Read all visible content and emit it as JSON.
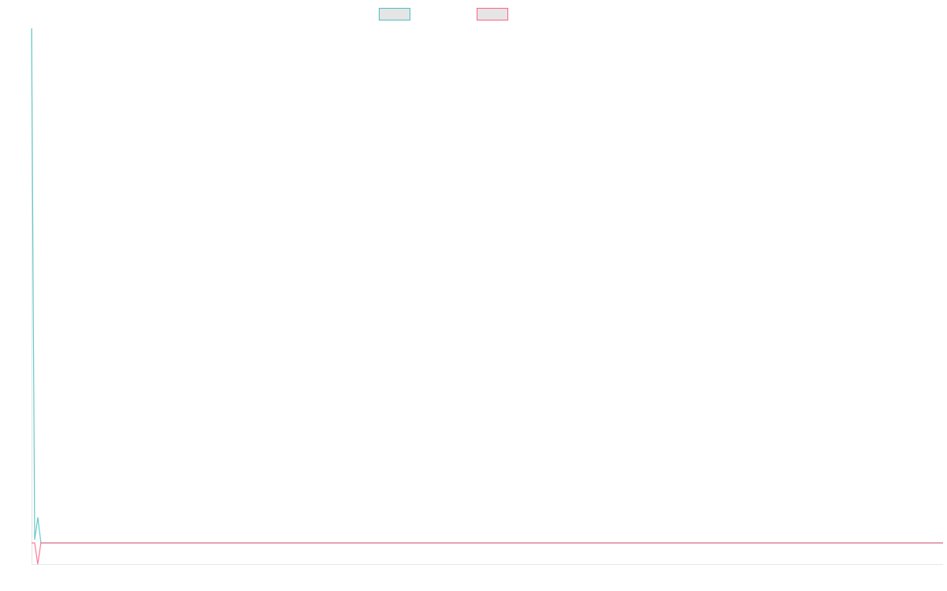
{
  "chart_data": {
    "type": "line",
    "title": "",
    "xlabel": "",
    "ylabel": "",
    "ylim": [
      -1,
      24.2
    ],
    "grid": false,
    "legend_placement": "top",
    "series": [
      {
        "color": "#4bc0c0",
        "values": [
          24.2,
          0.15,
          1.2,
          0,
          0,
          0,
          0,
          0,
          0,
          0,
          0,
          0,
          0,
          0,
          0,
          0,
          0,
          0,
          0,
          0,
          0,
          0,
          0,
          0,
          0,
          0,
          0,
          0,
          0,
          0,
          0,
          0,
          0,
          0,
          0,
          0,
          0,
          0,
          0,
          0,
          0,
          0,
          0,
          0,
          0,
          0,
          0,
          0,
          0,
          0,
          0,
          0,
          0,
          0,
          0,
          0,
          0,
          0,
          0,
          0,
          0,
          0,
          0,
          0,
          0,
          0,
          0,
          0,
          0,
          0,
          0,
          0,
          0,
          0,
          0,
          0,
          0,
          0,
          0,
          0,
          0,
          0,
          0,
          0,
          0,
          0,
          0,
          0,
          0,
          0,
          0,
          0,
          0,
          0,
          0,
          0,
          0,
          0,
          0,
          0,
          0,
          0,
          0,
          0,
          0,
          0,
          0,
          0,
          0,
          0,
          0,
          0,
          0,
          0,
          0,
          0,
          0,
          0,
          0,
          0,
          0,
          0,
          0,
          0,
          0,
          0,
          0,
          0,
          0,
          0,
          0,
          0,
          0,
          0,
          0,
          0,
          0,
          0,
          0,
          0,
          0,
          0,
          0,
          0,
          0,
          0,
          0,
          0,
          0,
          0,
          0,
          0,
          0,
          0,
          0,
          0,
          0,
          0,
          0,
          0,
          0,
          0,
          0,
          0,
          0,
          0,
          0,
          0,
          0,
          0,
          0,
          0,
          0,
          0,
          0,
          0,
          0,
          0,
          0,
          0,
          0,
          0,
          0,
          0,
          0,
          0,
          0,
          0,
          0,
          0,
          0,
          0,
          0,
          0,
          0,
          0,
          0,
          0,
          0,
          0,
          0,
          0,
          0,
          0,
          0,
          0,
          0,
          0,
          0,
          0,
          0,
          0,
          0,
          0,
          0,
          0,
          0,
          0,
          0,
          0,
          0,
          0,
          0,
          0,
          0,
          0,
          0,
          0,
          0,
          0,
          0,
          0,
          0,
          0,
          0,
          0,
          0,
          0,
          0,
          0,
          0,
          0,
          0,
          0,
          0,
          0,
          0,
          0,
          0,
          0,
          0,
          0,
          0,
          0,
          0,
          0,
          0,
          0,
          0,
          0,
          0,
          0,
          0,
          0,
          0,
          0,
          0,
          0,
          0,
          0,
          0,
          0,
          0,
          0,
          0,
          0,
          0,
          0,
          0,
          0,
          0,
          0,
          0,
          0,
          0,
          0,
          0,
          0,
          0,
          0,
          0,
          0,
          0
        ]
      },
      {
        "color": "#ff6384",
        "values": [
          0,
          0,
          -1,
          0,
          0,
          0,
          0,
          0,
          0,
          0,
          0,
          0,
          0,
          0,
          0,
          0,
          0,
          0,
          0,
          0,
          0,
          0,
          0,
          0,
          0,
          0,
          0,
          0,
          0,
          0,
          0,
          0,
          0,
          0,
          0,
          0,
          0,
          0,
          0,
          0,
          0,
          0,
          0,
          0,
          0,
          0,
          0,
          0,
          0,
          0,
          0,
          0,
          0,
          0,
          0,
          0,
          0,
          0,
          0,
          0,
          0,
          0,
          0,
          0,
          0,
          0,
          0,
          0,
          0,
          0,
          0,
          0,
          0,
          0,
          0,
          0,
          0,
          0,
          0,
          0,
          0,
          0,
          0,
          0,
          0,
          0,
          0,
          0,
          0,
          0,
          0,
          0,
          0,
          0,
          0,
          0,
          0,
          0,
          0,
          0,
          0,
          0,
          0,
          0,
          0,
          0,
          0,
          0,
          0,
          0,
          0,
          0,
          0,
          0,
          0,
          0,
          0,
          0,
          0,
          0,
          0,
          0,
          0,
          0,
          0,
          0,
          0,
          0,
          0,
          0,
          0,
          0,
          0,
          0,
          0,
          0,
          0,
          0,
          0,
          0,
          0,
          0,
          0,
          0,
          0,
          0,
          0,
          0,
          0,
          0,
          0,
          0,
          0,
          0,
          0,
          0,
          0,
          0,
          0,
          0,
          0,
          0,
          0,
          0,
          0,
          0,
          0,
          0,
          0,
          0,
          0,
          0,
          0,
          0,
          0,
          0,
          0,
          0,
          0,
          0,
          0,
          0,
          0,
          0,
          0,
          0,
          0,
          0,
          0,
          0,
          0,
          0,
          0,
          0,
          0,
          0,
          0,
          0,
          0,
          0,
          0,
          0,
          0,
          0,
          0,
          0,
          0,
          0,
          0,
          0,
          0,
          0,
          0,
          0,
          0,
          0,
          0,
          0,
          0,
          0,
          0,
          0,
          0,
          0,
          0,
          0,
          0,
          0,
          0,
          0,
          0,
          0,
          0,
          0,
          0,
          0,
          0,
          0,
          0,
          0,
          0,
          0,
          0,
          0,
          0,
          0,
          0,
          0,
          0,
          0,
          0,
          0,
          0,
          0,
          0,
          0,
          0,
          0,
          0,
          0,
          0,
          0,
          0,
          0,
          0,
          0,
          0,
          0,
          0,
          0,
          0,
          0,
          0,
          0,
          0,
          0,
          0,
          0,
          0,
          0,
          0,
          0,
          0,
          0,
          0,
          0,
          0,
          0,
          0,
          0,
          0,
          0,
          0,
          0,
          0
        ]
      }
    ]
  }
}
